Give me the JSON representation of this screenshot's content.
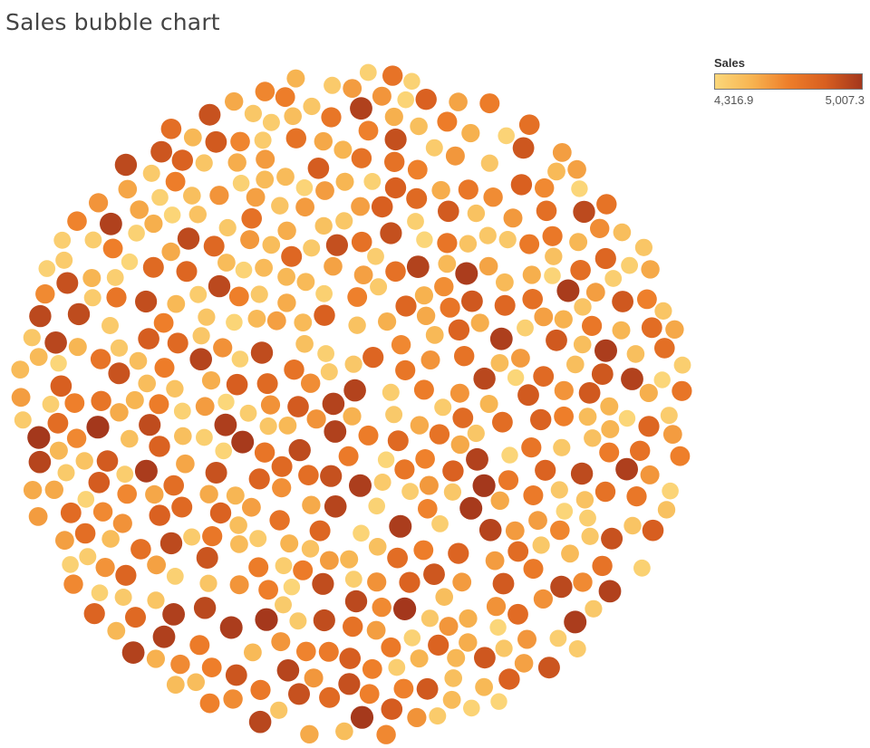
{
  "title": "Sales bubble chart",
  "legend": {
    "title": "Sales",
    "min_label": "4,316.9",
    "max_label": "5,007.3",
    "colors": [
      "#fbd77a",
      "#f7b451",
      "#ee7e2a",
      "#d85f20",
      "#a3371c"
    ]
  },
  "chart_data": {
    "type": "scatter",
    "subtype": "packed-bubble",
    "title": "Sales bubble chart",
    "measure": "Sales",
    "color_range": [
      4316.9,
      5007.3
    ],
    "size_encodes": "Sales",
    "bubble_count_approx": 1000,
    "legend_placement": "top-right",
    "grid": false
  }
}
